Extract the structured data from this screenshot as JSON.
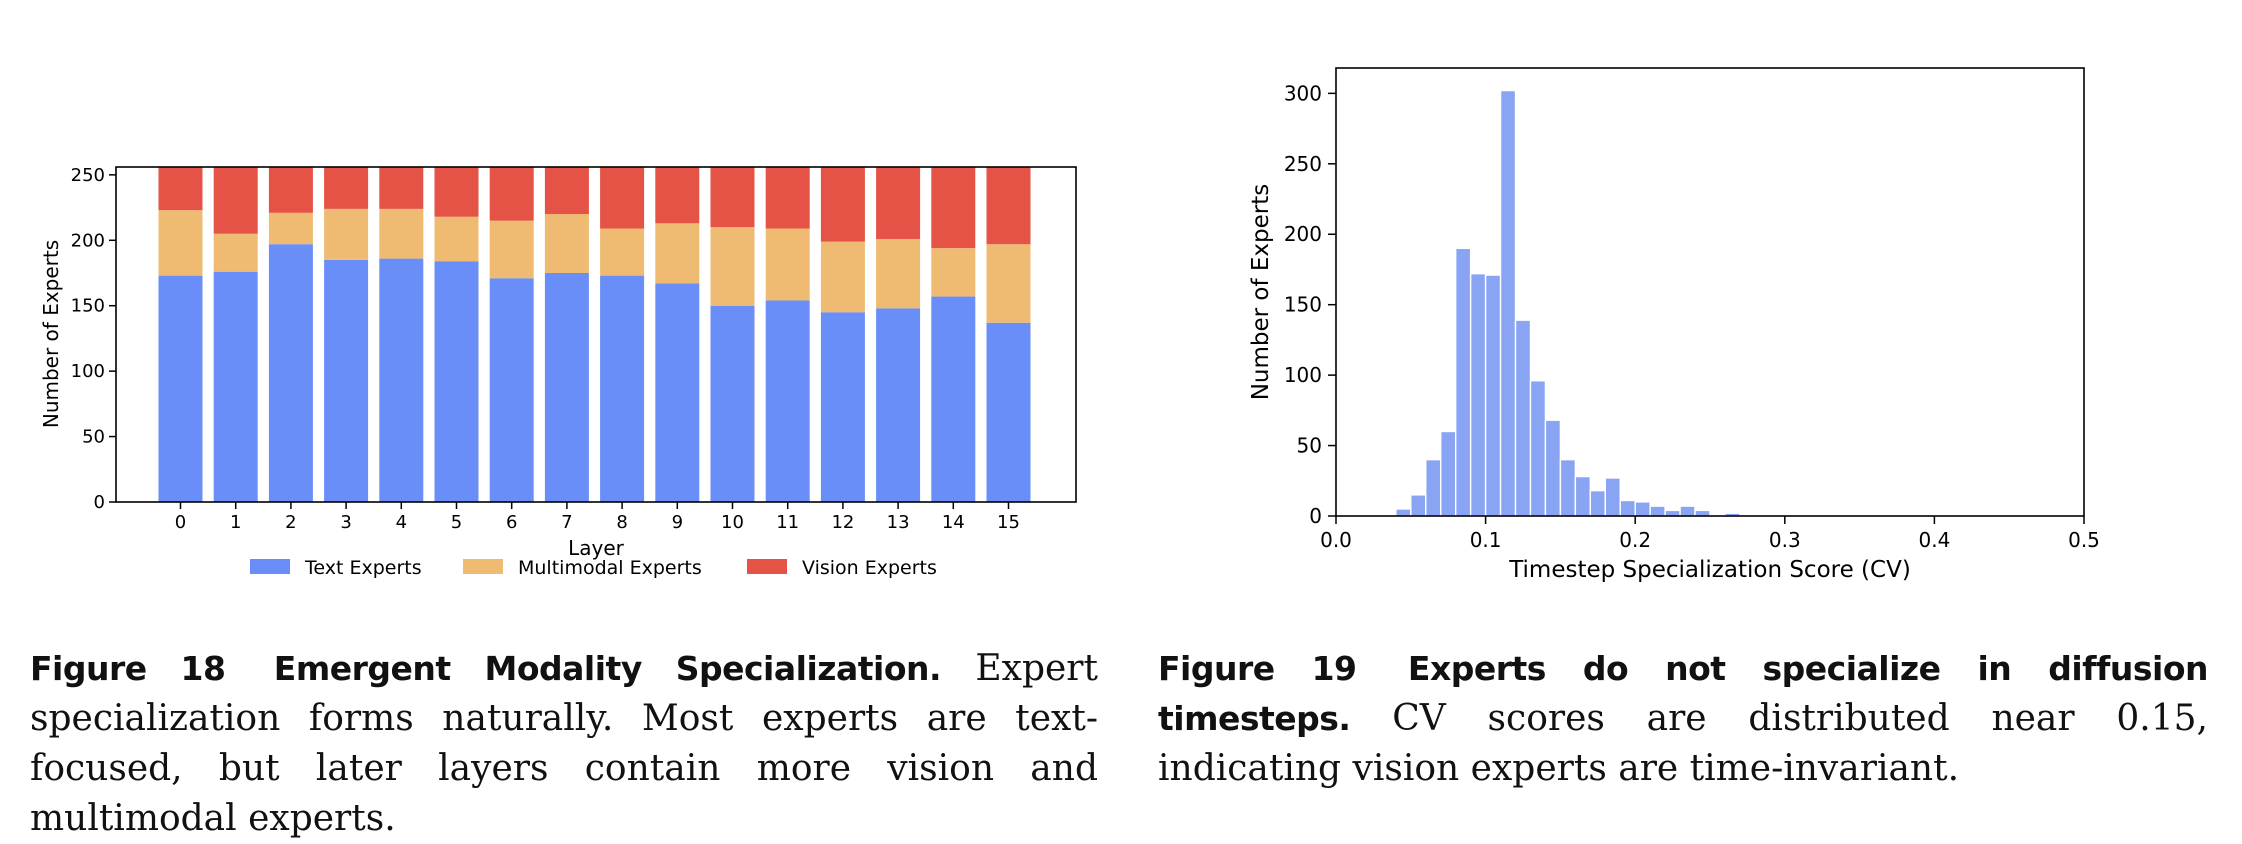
{
  "chart_data": [
    {
      "type": "bar",
      "stacked": true,
      "categories": [
        "0",
        "1",
        "2",
        "3",
        "4",
        "5",
        "6",
        "7",
        "8",
        "9",
        "10",
        "11",
        "12",
        "13",
        "14",
        "15"
      ],
      "series": [
        {
          "name": "Text Experts",
          "color": "#6a8ef7",
          "values": [
            173,
            176,
            197,
            185,
            186,
            184,
            171,
            175,
            173,
            167,
            150,
            154,
            145,
            148,
            157,
            137
          ]
        },
        {
          "name": "Multimodal Experts",
          "color": "#efbb72",
          "values": [
            50,
            29,
            24,
            39,
            38,
            34,
            44,
            45,
            36,
            46,
            60,
            55,
            54,
            53,
            37,
            60
          ]
        },
        {
          "name": "Vision Experts",
          "color": "#e55246",
          "values": [
            33,
            51,
            35,
            32,
            32,
            38,
            41,
            36,
            47,
            43,
            46,
            47,
            57,
            55,
            62,
            59
          ]
        }
      ],
      "xlabel": "Layer",
      "ylabel": "Number of Experts",
      "ylim": [
        0,
        256
      ],
      "yticks": [
        "0",
        "50",
        "100",
        "150",
        "200",
        "250"
      ],
      "legend": "bottom-center"
    },
    {
      "type": "bar",
      "subtype": "histogram",
      "color": "#8aa4f4",
      "bin_width": 0.01,
      "bin_starts": [
        0.04,
        0.05,
        0.06,
        0.07,
        0.08,
        0.09,
        0.1,
        0.11,
        0.12,
        0.13,
        0.14,
        0.15,
        0.16,
        0.17,
        0.18,
        0.19,
        0.2,
        0.21,
        0.22,
        0.23,
        0.24,
        0.25,
        0.26,
        0.27,
        0.28,
        0.29,
        0.3,
        0.31,
        0.32,
        0.33,
        0.34,
        0.35,
        0.36,
        0.37,
        0.38,
        0.39
      ],
      "values": [
        5,
        15,
        40,
        60,
        190,
        172,
        171,
        302,
        139,
        96,
        68,
        40,
        28,
        18,
        27,
        11,
        10,
        7,
        4,
        7,
        4,
        1,
        2,
        1,
        1,
        0,
        0,
        0,
        0,
        0,
        0,
        0,
        0,
        0,
        0,
        1
      ],
      "xlabel": "Timestep Specialization Score (CV)",
      "ylabel": "Number of Experts",
      "xlim": [
        0.0,
        0.5
      ],
      "ylim": [
        0,
        318
      ],
      "xticks": [
        "0.0",
        "0.1",
        "0.2",
        "0.3",
        "0.4",
        "0.5"
      ],
      "yticks": [
        "0",
        "50",
        "100",
        "150",
        "200",
        "250",
        "300"
      ]
    }
  ],
  "captions": {
    "fig18": {
      "number": "Figure 18",
      "title": "Emergent Modality Specialization.",
      "text": "Expert specialization forms naturally. Most experts are text-focused, but later layers contain more vision and multimodal experts."
    },
    "fig19": {
      "number": "Figure 19",
      "title": "Experts do not specialize in diffusion timesteps.",
      "text": "CV scores are distributed near 0.15, indicating vision experts are time-invariant."
    }
  }
}
